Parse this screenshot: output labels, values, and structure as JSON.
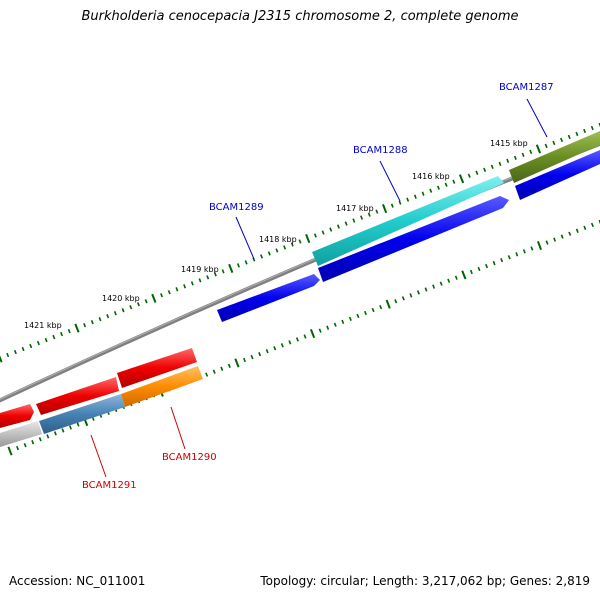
{
  "title": "Burkholderia cenocepacia J2315 chromosome 2, complete genome",
  "footer": {
    "accession": "Accession: NC_011001",
    "summary": "Topology: circular; Length: 3,217,062 bp; Genes: 2,819"
  },
  "ticks": [
    "1415 kbp",
    "1416 kbp",
    "1417 kbp",
    "1418 kbp",
    "1419 kbp",
    "1420 kbp",
    "1421 kbp"
  ],
  "genes": [
    {
      "name": "BCAM1287",
      "strand": "forward",
      "color": "#0000cc"
    },
    {
      "name": "BCAM1288",
      "strand": "forward",
      "color": "#0000cc"
    },
    {
      "name": "BCAM1289",
      "strand": "forward",
      "color": "#0000cc"
    },
    {
      "name": "BCAM1290",
      "strand": "reverse",
      "color": "#cc0000"
    },
    {
      "name": "BCAM1291",
      "strand": "reverse",
      "color": "#cc0000"
    }
  ],
  "colors": {
    "cds_forward": "#0000ee",
    "cds_reverse": "#ee0000",
    "feature_cyan": "#22cccc",
    "feature_olive": "#6b8e23",
    "feature_steelblue": "#4682b4",
    "feature_orange": "#ff8c00",
    "feature_grey": "#c0c0c0",
    "backbone": "#808080",
    "ticks": "#006400"
  }
}
